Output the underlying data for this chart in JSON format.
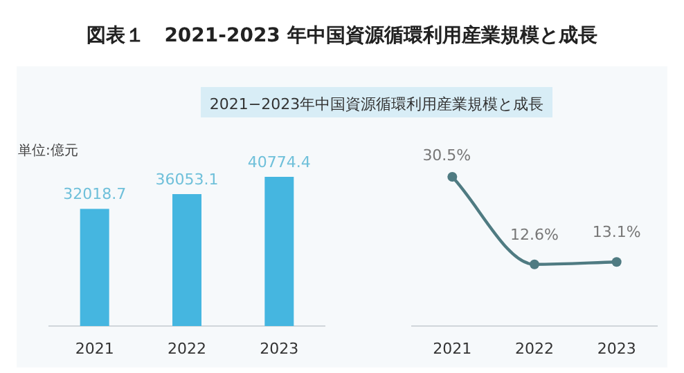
{
  "chart_data": [
    {
      "type": "bar",
      "title": "図表１　2021-2023 年中国資源循環利用産業規模と成長",
      "subtitle": "2021−2023年中国資源循環利用産業規模と成長",
      "ylabel": "単位:億元",
      "categories": [
        "2021",
        "2022",
        "2023"
      ],
      "values": [
        32018.7,
        36053.1,
        40774.4
      ],
      "color": "#45b6e0",
      "data_labels": true
    },
    {
      "type": "line",
      "categories": [
        "2021",
        "2022",
        "2023"
      ],
      "series": [
        {
          "color": "#4f7b82",
          "values": [
            30.5,
            12.6,
            13.1
          ],
          "value_labels": [
            "30.5%",
            "12.6%",
            "13.1%"
          ]
        }
      ],
      "marker": "circle",
      "line_style": "solid"
    }
  ]
}
